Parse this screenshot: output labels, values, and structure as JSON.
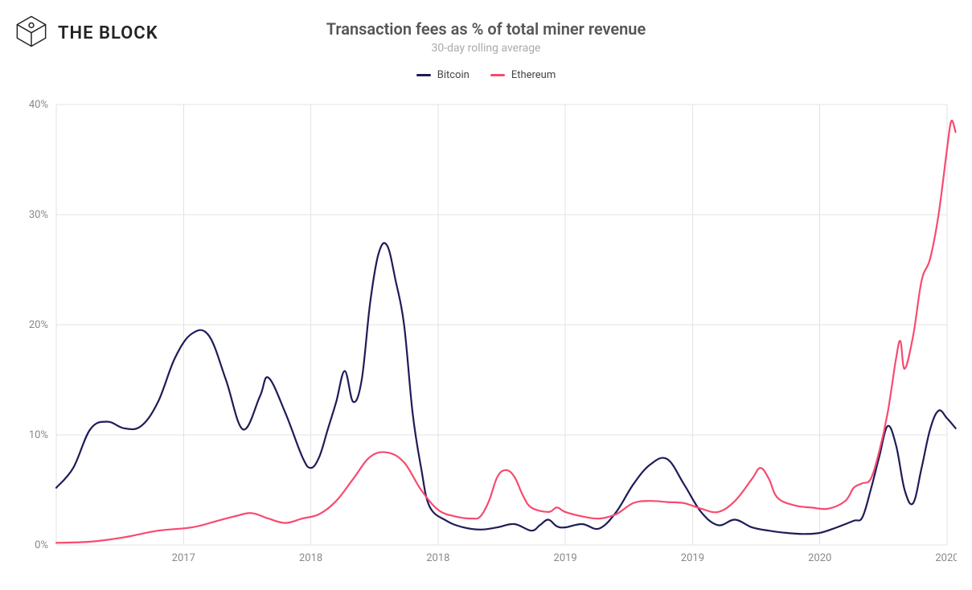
{
  "brand": {
    "name": "THE BLOCK"
  },
  "title": "Transaction fees as % of total miner revenue",
  "subtitle": "30-day rolling average",
  "legend": [
    {
      "label": "Bitcoin",
      "color": "#1e1c58"
    },
    {
      "label": "Ethereum",
      "color": "#f84a6f"
    }
  ],
  "chart": {
    "type": "line",
    "background_color": "#ffffff",
    "grid_color": "#e3e3e3",
    "axis_text_color": "#888888",
    "axis_fontsize": 13,
    "line_width": 2.2,
    "y": {
      "min": 0,
      "max": 40,
      "ticks": [
        0,
        10,
        20,
        30,
        40
      ],
      "tick_format_suffix": "%"
    },
    "x": {
      "min": 0,
      "max": 210,
      "gridlines": [
        0,
        30,
        60,
        90,
        120,
        150,
        180,
        210
      ],
      "tick_positions": [
        30,
        60,
        90,
        120,
        150,
        180,
        210
      ],
      "tick_labels": [
        "2017",
        "2018",
        "2018",
        "2019",
        "2019",
        "2020",
        "2020"
      ]
    },
    "series": {
      "bitcoin": {
        "color": "#1e1c58",
        "points": [
          [
            0,
            5.2
          ],
          [
            4,
            7.0
          ],
          [
            8,
            10.5
          ],
          [
            12,
            11.2
          ],
          [
            16,
            10.6
          ],
          [
            20,
            10.8
          ],
          [
            24,
            13.0
          ],
          [
            28,
            17.0
          ],
          [
            32,
            19.2
          ],
          [
            36,
            19.0
          ],
          [
            40,
            15.0
          ],
          [
            44,
            10.5
          ],
          [
            48,
            13.5
          ],
          [
            50,
            15.2
          ],
          [
            54,
            12.0
          ],
          [
            58,
            8.0
          ],
          [
            60,
            7.0
          ],
          [
            62,
            8.0
          ],
          [
            64,
            10.5
          ],
          [
            66,
            13.0
          ],
          [
            68,
            15.8
          ],
          [
            70,
            13.0
          ],
          [
            72,
            15.0
          ],
          [
            74,
            22.0
          ],
          [
            76,
            26.5
          ],
          [
            78,
            27.2
          ],
          [
            80,
            24.0
          ],
          [
            82,
            20.0
          ],
          [
            84,
            12.0
          ],
          [
            86,
            7.0
          ],
          [
            88,
            3.5
          ],
          [
            92,
            2.2
          ],
          [
            96,
            1.6
          ],
          [
            100,
            1.4
          ],
          [
            104,
            1.6
          ],
          [
            108,
            1.9
          ],
          [
            112,
            1.3
          ],
          [
            114,
            1.8
          ],
          [
            116,
            2.3
          ],
          [
            118,
            1.7
          ],
          [
            120,
            1.6
          ],
          [
            124,
            1.9
          ],
          [
            128,
            1.5
          ],
          [
            132,
            3.0
          ],
          [
            136,
            5.5
          ],
          [
            140,
            7.3
          ],
          [
            144,
            7.8
          ],
          [
            148,
            5.5
          ],
          [
            152,
            3.0
          ],
          [
            156,
            1.8
          ],
          [
            160,
            2.3
          ],
          [
            164,
            1.6
          ],
          [
            168,
            1.3
          ],
          [
            172,
            1.1
          ],
          [
            176,
            1.0
          ],
          [
            180,
            1.1
          ],
          [
            184,
            1.6
          ],
          [
            188,
            2.2
          ],
          [
            190,
            2.5
          ],
          [
            192,
            5.0
          ],
          [
            194,
            8.0
          ],
          [
            196,
            10.8
          ],
          [
            198,
            9.0
          ],
          [
            200,
            5.0
          ],
          [
            202,
            3.8
          ],
          [
            204,
            7.0
          ],
          [
            206,
            10.5
          ],
          [
            208,
            12.2
          ],
          [
            210,
            11.5
          ],
          [
            212,
            10.6
          ]
        ]
      },
      "ethereum": {
        "color": "#f84a6f",
        "points": [
          [
            0,
            0.2
          ],
          [
            8,
            0.3
          ],
          [
            16,
            0.7
          ],
          [
            24,
            1.3
          ],
          [
            32,
            1.6
          ],
          [
            38,
            2.2
          ],
          [
            42,
            2.6
          ],
          [
            46,
            2.9
          ],
          [
            50,
            2.4
          ],
          [
            54,
            2.0
          ],
          [
            58,
            2.4
          ],
          [
            62,
            2.8
          ],
          [
            66,
            4.0
          ],
          [
            70,
            6.0
          ],
          [
            74,
            8.0
          ],
          [
            78,
            8.4
          ],
          [
            82,
            7.5
          ],
          [
            86,
            5.0
          ],
          [
            90,
            3.2
          ],
          [
            94,
            2.6
          ],
          [
            98,
            2.4
          ],
          [
            100,
            2.6
          ],
          [
            102,
            4.0
          ],
          [
            104,
            6.2
          ],
          [
            106,
            6.8
          ],
          [
            108,
            6.2
          ],
          [
            110,
            4.5
          ],
          [
            112,
            3.4
          ],
          [
            116,
            3.0
          ],
          [
            118,
            3.4
          ],
          [
            120,
            3.0
          ],
          [
            124,
            2.6
          ],
          [
            128,
            2.4
          ],
          [
            132,
            2.8
          ],
          [
            136,
            3.8
          ],
          [
            140,
            4.0
          ],
          [
            144,
            3.9
          ],
          [
            148,
            3.8
          ],
          [
            152,
            3.3
          ],
          [
            156,
            3.0
          ],
          [
            160,
            4.0
          ],
          [
            164,
            6.0
          ],
          [
            166,
            7.0
          ],
          [
            168,
            6.0
          ],
          [
            170,
            4.3
          ],
          [
            174,
            3.6
          ],
          [
            178,
            3.4
          ],
          [
            182,
            3.3
          ],
          [
            186,
            4.0
          ],
          [
            188,
            5.2
          ],
          [
            190,
            5.6
          ],
          [
            192,
            6.0
          ],
          [
            194,
            8.5
          ],
          [
            196,
            12.0
          ],
          [
            198,
            17.0
          ],
          [
            199,
            18.5
          ],
          [
            200,
            16.0
          ],
          [
            202,
            19.0
          ],
          [
            204,
            24.0
          ],
          [
            206,
            26.0
          ],
          [
            208,
            30.0
          ],
          [
            210,
            36.0
          ],
          [
            211,
            38.5
          ],
          [
            212,
            37.5
          ]
        ]
      }
    }
  }
}
